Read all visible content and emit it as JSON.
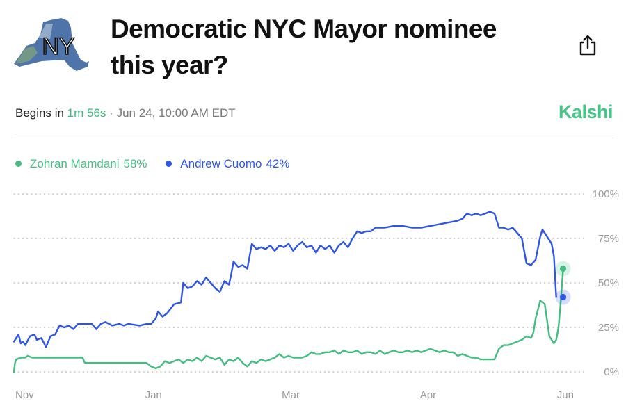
{
  "header": {
    "logo_text": "NY",
    "title_line1": "Democratic NYC Mayor nominee",
    "title_line2": "this year?"
  },
  "meta": {
    "begins_label": "Begins in",
    "countdown": "1m 56s",
    "separator": "·",
    "date": "Jun 24, 10:00 AM EDT"
  },
  "brand": "Kalshi",
  "legend": [
    {
      "name": "Zohran Mamdani",
      "pct": "58%",
      "color": "#43bd80"
    },
    {
      "name": "Andrew Cuomo",
      "pct": "42%",
      "color": "#2d55e6"
    }
  ],
  "chart_data": {
    "type": "line",
    "title": "Democratic NYC Mayor nominee this year?",
    "x_tick_labels": [
      "Nov",
      "Jan",
      "Mar",
      "Apr",
      "Jun"
    ],
    "x_tick_positions": [
      1,
      61,
      121,
      181,
      241
    ],
    "x_range": [
      0,
      245
    ],
    "ylim": [
      0,
      100
    ],
    "y_ticks": [
      0,
      25,
      50,
      75,
      100
    ],
    "y_tick_labels": [
      "0%",
      "25%",
      "50%",
      "75%",
      "100%"
    ],
    "grid": true,
    "series": [
      {
        "name": "Andrew Cuomo",
        "color": "#2d55e6",
        "points": [
          [
            0,
            17
          ],
          [
            2,
            21
          ],
          [
            3,
            16
          ],
          [
            4,
            17
          ],
          [
            5,
            15
          ],
          [
            7,
            20
          ],
          [
            9,
            21
          ],
          [
            10,
            18
          ],
          [
            12,
            19
          ],
          [
            14,
            14
          ],
          [
            16,
            20
          ],
          [
            18,
            21
          ],
          [
            20,
            26
          ],
          [
            22,
            25
          ],
          [
            24,
            26
          ],
          [
            26,
            24
          ],
          [
            28,
            27
          ],
          [
            34,
            27
          ],
          [
            36,
            24
          ],
          [
            38,
            27
          ],
          [
            40,
            28
          ],
          [
            43,
            26
          ],
          [
            46,
            27
          ],
          [
            48,
            26
          ],
          [
            50,
            27
          ],
          [
            55,
            26
          ],
          [
            58,
            27
          ],
          [
            60,
            27
          ],
          [
            62,
            30
          ],
          [
            63,
            34
          ],
          [
            65,
            31
          ],
          [
            67,
            33
          ],
          [
            70,
            38
          ],
          [
            73,
            39
          ],
          [
            74,
            50
          ],
          [
            76,
            47
          ],
          [
            78,
            48
          ],
          [
            80,
            51
          ],
          [
            82,
            49
          ],
          [
            84,
            53
          ],
          [
            86,
            50
          ],
          [
            88,
            47
          ],
          [
            90,
            45
          ],
          [
            92,
            51
          ],
          [
            94,
            49
          ],
          [
            95,
            55
          ],
          [
            96,
            62
          ],
          [
            98,
            59
          ],
          [
            100,
            60
          ],
          [
            102,
            58
          ],
          [
            104,
            72
          ],
          [
            106,
            69
          ],
          [
            108,
            70
          ],
          [
            110,
            69
          ],
          [
            112,
            71
          ],
          [
            114,
            68
          ],
          [
            116,
            71
          ],
          [
            118,
            70
          ],
          [
            120,
            72
          ],
          [
            122,
            68
          ],
          [
            124,
            71
          ],
          [
            126,
            73
          ],
          [
            128,
            70
          ],
          [
            130,
            71
          ],
          [
            132,
            67
          ],
          [
            134,
            71
          ],
          [
            136,
            69
          ],
          [
            138,
            71
          ],
          [
            140,
            67
          ],
          [
            142,
            71
          ],
          [
            144,
            73
          ],
          [
            146,
            70
          ],
          [
            148,
            75
          ],
          [
            150,
            79
          ],
          [
            152,
            78
          ],
          [
            154,
            79
          ],
          [
            156,
            79
          ],
          [
            158,
            81
          ],
          [
            162,
            81
          ],
          [
            166,
            82
          ],
          [
            170,
            82
          ],
          [
            174,
            81
          ],
          [
            178,
            81
          ],
          [
            182,
            82
          ],
          [
            186,
            83
          ],
          [
            190,
            84
          ],
          [
            194,
            85
          ],
          [
            196,
            86
          ],
          [
            198,
            89
          ],
          [
            200,
            88
          ],
          [
            202,
            89
          ],
          [
            204,
            88
          ],
          [
            206,
            89
          ],
          [
            208,
            90
          ],
          [
            210,
            89
          ],
          [
            212,
            81
          ],
          [
            214,
            81
          ],
          [
            216,
            80
          ],
          [
            218,
            81
          ],
          [
            220,
            78
          ],
          [
            222,
            75
          ],
          [
            224,
            61
          ],
          [
            226,
            60
          ],
          [
            228,
            63
          ],
          [
            230,
            76
          ],
          [
            231,
            80
          ],
          [
            233,
            76
          ],
          [
            235,
            72
          ],
          [
            236,
            65
          ],
          [
            237,
            42
          ]
        ]
      },
      {
        "name": "Zohran Mamdani",
        "color": "#43bd80",
        "points": [
          [
            0,
            0
          ],
          [
            0.5,
            5
          ],
          [
            1,
            7
          ],
          [
            3,
            8
          ],
          [
            5,
            8
          ],
          [
            6,
            9
          ],
          [
            8,
            8
          ],
          [
            12,
            8
          ],
          [
            20,
            8
          ],
          [
            30,
            8
          ],
          [
            31,
            5
          ],
          [
            40,
            5
          ],
          [
            50,
            5
          ],
          [
            58,
            5
          ],
          [
            60,
            3
          ],
          [
            62,
            2
          ],
          [
            64,
            3
          ],
          [
            66,
            6
          ],
          [
            68,
            5
          ],
          [
            70,
            6
          ],
          [
            72,
            7
          ],
          [
            74,
            5
          ],
          [
            76,
            7
          ],
          [
            78,
            6
          ],
          [
            80,
            8
          ],
          [
            82,
            6
          ],
          [
            84,
            9
          ],
          [
            86,
            8
          ],
          [
            88,
            7
          ],
          [
            90,
            8
          ],
          [
            92,
            4
          ],
          [
            94,
            7
          ],
          [
            96,
            6
          ],
          [
            98,
            8
          ],
          [
            100,
            5
          ],
          [
            102,
            3
          ],
          [
            104,
            6
          ],
          [
            106,
            5
          ],
          [
            108,
            7
          ],
          [
            110,
            6
          ],
          [
            112,
            7
          ],
          [
            114,
            8
          ],
          [
            116,
            10
          ],
          [
            118,
            8
          ],
          [
            120,
            9
          ],
          [
            122,
            8
          ],
          [
            124,
            8
          ],
          [
            126,
            8
          ],
          [
            128,
            9
          ],
          [
            130,
            11
          ],
          [
            132,
            10
          ],
          [
            134,
            10
          ],
          [
            136,
            11
          ],
          [
            138,
            11
          ],
          [
            140,
            12
          ],
          [
            142,
            10
          ],
          [
            144,
            12
          ],
          [
            146,
            11
          ],
          [
            148,
            11
          ],
          [
            150,
            12
          ],
          [
            152,
            10
          ],
          [
            154,
            11
          ],
          [
            156,
            11
          ],
          [
            158,
            10
          ],
          [
            160,
            12
          ],
          [
            162,
            10
          ],
          [
            164,
            11
          ],
          [
            166,
            12
          ],
          [
            168,
            11
          ],
          [
            170,
            11
          ],
          [
            172,
            12
          ],
          [
            174,
            11
          ],
          [
            176,
            12
          ],
          [
            178,
            11
          ],
          [
            180,
            12
          ],
          [
            182,
            13
          ],
          [
            184,
            12
          ],
          [
            186,
            11
          ],
          [
            188,
            12
          ],
          [
            190,
            11
          ],
          [
            192,
            11
          ],
          [
            194,
            9
          ],
          [
            196,
            10
          ],
          [
            198,
            9
          ],
          [
            200,
            8
          ],
          [
            202,
            8
          ],
          [
            204,
            7
          ],
          [
            206,
            7
          ],
          [
            208,
            7
          ],
          [
            210,
            7
          ],
          [
            212,
            13
          ],
          [
            214,
            15
          ],
          [
            216,
            15
          ],
          [
            218,
            16
          ],
          [
            220,
            17
          ],
          [
            222,
            18
          ],
          [
            224,
            20
          ],
          [
            226,
            19
          ],
          [
            227,
            22
          ],
          [
            228,
            30
          ],
          [
            230,
            40
          ],
          [
            232,
            38
          ],
          [
            234,
            20
          ],
          [
            236,
            16
          ],
          [
            237,
            18
          ],
          [
            238,
            25
          ],
          [
            239,
            40
          ],
          [
            240,
            58
          ]
        ]
      }
    ],
    "end_markers": [
      {
        "series": "Zohran Mamdani",
        "x": 240,
        "value": 58
      },
      {
        "series": "Andrew Cuomo",
        "x": 240,
        "value": 42
      }
    ]
  }
}
